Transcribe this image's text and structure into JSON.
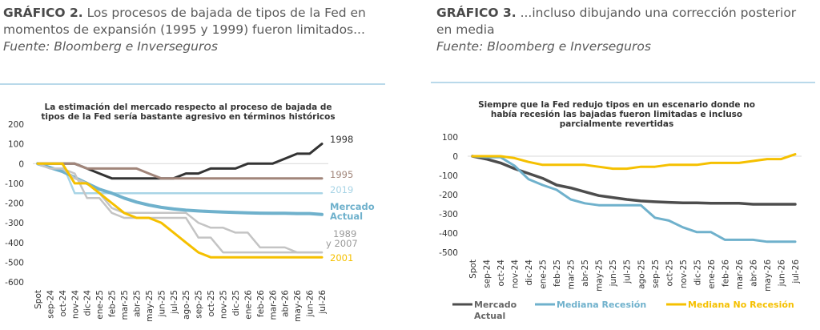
{
  "captions": {
    "left": {
      "label": "GRÁFICO 2.",
      "text": " Los procesos de bajada de tipos de la Fed en momentos de expansión (1995 y 1999) fueron limitados...",
      "source": "Fuente: Bloomberg e Inverseguros"
    },
    "right": {
      "label": "GRÁFICO 3.",
      "text": " ...incluso dibujando una corrección posterior en media",
      "source": "Fuente: Bloomberg e Inverseguros"
    }
  },
  "chart_data": [
    {
      "type": "line",
      "title": "La estimación del mercado respecto al proceso de bajada de tipos de la Fed sería bastante agresivo en términos históricos",
      "title_lines": [
        "La estimación del mercado respecto al proceso de bajada de",
        "tipos de la Fed sería bastante agresivo en términos históricos"
      ],
      "xlabel": "",
      "ylabel": "",
      "ylim": [
        -600,
        200
      ],
      "yticks": [
        200,
        100,
        0,
        -100,
        -200,
        -300,
        -400,
        -500,
        -600
      ],
      "grid": "zero-line only",
      "legend": "inline labels at right end of lines",
      "categories": [
        "Spot",
        "sep-24",
        "oct-24",
        "nov-24",
        "dic-24",
        "ene-25",
        "feb-25",
        "mar-25",
        "abr-25",
        "may-25",
        "jun-25",
        "jul-25",
        "ago-25",
        "sep-25",
        "oct-25",
        "nov-25",
        "dic-25",
        "ene-26",
        "feb-26",
        "mar-26",
        "abr-26",
        "may-26",
        "jun-26",
        "jul-26"
      ],
      "series": [
        {
          "name": "1998",
          "label_lines": [
            "1998"
          ],
          "color": "#333333",
          "values": [
            0,
            0,
            0,
            0,
            -25,
            -50,
            -75,
            -75,
            -75,
            -75,
            -75,
            -75,
            -50,
            -50,
            -25,
            -25,
            -25,
            0,
            0,
            0,
            25,
            50,
            50,
            100
          ]
        },
        {
          "name": "1995",
          "label_lines": [
            "1995"
          ],
          "color": "#a1857a",
          "values": [
            0,
            0,
            0,
            0,
            -25,
            -25,
            -25,
            -25,
            -25,
            -50,
            -75,
            -75,
            -75,
            -75,
            -75,
            -75,
            -75,
            -75,
            -75,
            -75,
            -75,
            -75,
            -75,
            -75
          ]
        },
        {
          "name": "2019",
          "label_lines": [
            "2019"
          ],
          "color": "#a8d4e6",
          "values": [
            0,
            0,
            0,
            -150,
            -150,
            -150,
            -150,
            -150,
            -150,
            -150,
            -150,
            -150,
            -150,
            -150,
            -150,
            -150,
            -150,
            -150,
            -150,
            -150,
            -150,
            -150,
            -150,
            -150
          ]
        },
        {
          "name": "Mercado Actual",
          "label_lines": [
            "Mercado",
            "Actual"
          ],
          "color": "#6fb1cc",
          "values": [
            0,
            -20,
            -40,
            -70,
            -100,
            -130,
            -150,
            -175,
            -195,
            -210,
            -222,
            -230,
            -236,
            -240,
            -243,
            -246,
            -248,
            -250,
            -251,
            -252,
            -252,
            -253,
            -253,
            -258
          ]
        },
        {
          "name": "1989",
          "label_lines": [
            "1989",
            "y 2007"
          ],
          "color": "#c4c4c4",
          "values": [
            0,
            -25,
            -25,
            -75,
            -100,
            -150,
            -225,
            -250,
            -250,
            -250,
            -250,
            -250,
            -250,
            -300,
            -325,
            -325,
            -350,
            -350,
            -425,
            -425,
            -425,
            -450,
            -450,
            -450
          ]
        },
        {
          "name": "2007",
          "label_lines": [],
          "color": "#c4c4c4",
          "values": [
            0,
            -25,
            -25,
            -50,
            -175,
            -175,
            -250,
            -275,
            -275,
            -275,
            -275,
            -275,
            -275,
            -375,
            -375,
            -450,
            -450,
            -450,
            -450,
            -450,
            -450,
            -450,
            -450,
            -450
          ]
        },
        {
          "name": "2001",
          "label_lines": [
            "2001"
          ],
          "color": "#f5c000",
          "values": [
            0,
            0,
            0,
            -100,
            -100,
            -150,
            -200,
            -250,
            -275,
            -275,
            -300,
            -350,
            -400,
            -450,
            -475,
            -475,
            -475,
            -475,
            -475,
            -475,
            -475,
            -475,
            -475,
            -475
          ]
        }
      ]
    },
    {
      "type": "line",
      "title": "Siempre que la Fed redujo tipos en un escenario donde no había recesión las bajadas fueron limitadas e incluso parcialmente revertidas",
      "title_lines": [
        "Siempre que la Fed redujo tipos en un escenario donde no",
        "había recesión las bajadas fueron limitadas e incluso",
        "parcialmente revertidas"
      ],
      "xlabel": "",
      "ylabel": "",
      "ylim": [
        -500,
        100
      ],
      "yticks": [
        100,
        0,
        -100,
        -200,
        -300,
        -400,
        -500
      ],
      "grid": "zero-line only",
      "legend": "bottom",
      "categories": [
        "Spot",
        "sep-24",
        "oct-24",
        "nov-24",
        "dic-24",
        "ene-25",
        "feb-25",
        "mar-25",
        "abr-25",
        "may-25",
        "jun-25",
        "jul-25",
        "ago-25",
        "sep-25",
        "oct-25",
        "nov-25",
        "dic-25",
        "ene-26",
        "feb-26",
        "mar-26",
        "abr-26",
        "may-26",
        "jun-26",
        "jul-26"
      ],
      "series": [
        {
          "name": "Mercado Actual",
          "legend_lines": [
            "Mercado",
            "Actual"
          ],
          "color": "#4d4d4d",
          "values": [
            0,
            -15,
            -35,
            -65,
            -90,
            -115,
            -150,
            -165,
            -185,
            -205,
            -215,
            -225,
            -233,
            -237,
            -240,
            -243,
            -243,
            -245,
            -245,
            -245,
            -250,
            -250,
            -250,
            -250
          ]
        },
        {
          "name": "Mediana Recesión",
          "legend_lines": [
            "Mediana Recesión"
          ],
          "color": "#6fb1cc",
          "values": [
            0,
            -5,
            -5,
            -50,
            -120,
            -150,
            -175,
            -225,
            -245,
            -255,
            -255,
            -255,
            -255,
            -320,
            -335,
            -370,
            -395,
            -395,
            -435,
            -435,
            -435,
            -445,
            -445,
            -445
          ]
        },
        {
          "name": "Mediana No Recesión",
          "legend_lines": [
            "Mediana No Recesión"
          ],
          "color": "#f5c000",
          "values": [
            0,
            0,
            0,
            -10,
            -30,
            -45,
            -45,
            -45,
            -45,
            -55,
            -65,
            -65,
            -55,
            -55,
            -45,
            -45,
            -45,
            -35,
            -35,
            -35,
            -25,
            -15,
            -15,
            10
          ]
        }
      ]
    }
  ]
}
